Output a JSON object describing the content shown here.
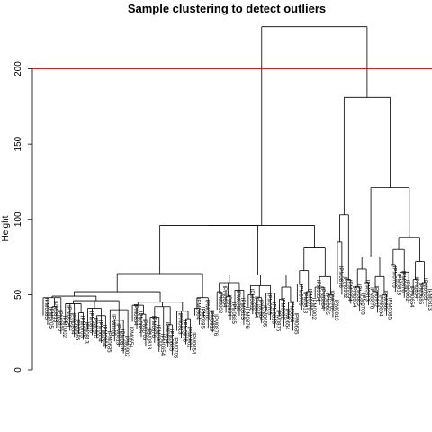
{
  "chart_data": {
    "type": "dendrogram",
    "title": "Sample clustering to detect outliers",
    "xlabel": "",
    "ylabel": "Height",
    "ylim": [
      0,
      235
    ],
    "yticks": [
      0,
      50,
      100,
      150,
      200
    ],
    "cut_height": 200,
    "cut_color": "#cc0000",
    "visible_leaf_labels": [
      "IPM0685",
      "IPM0705",
      "IPM0813",
      "IPM0876",
      "IPM0902",
      "IPM0654",
      "IPM0864"
    ],
    "merge_heights_major": [
      228,
      181,
      121,
      103,
      96,
      88,
      85,
      81,
      80,
      75,
      72,
      70,
      66,
      64,
      59,
      57,
      56,
      52,
      49,
      48,
      45
    ]
  }
}
